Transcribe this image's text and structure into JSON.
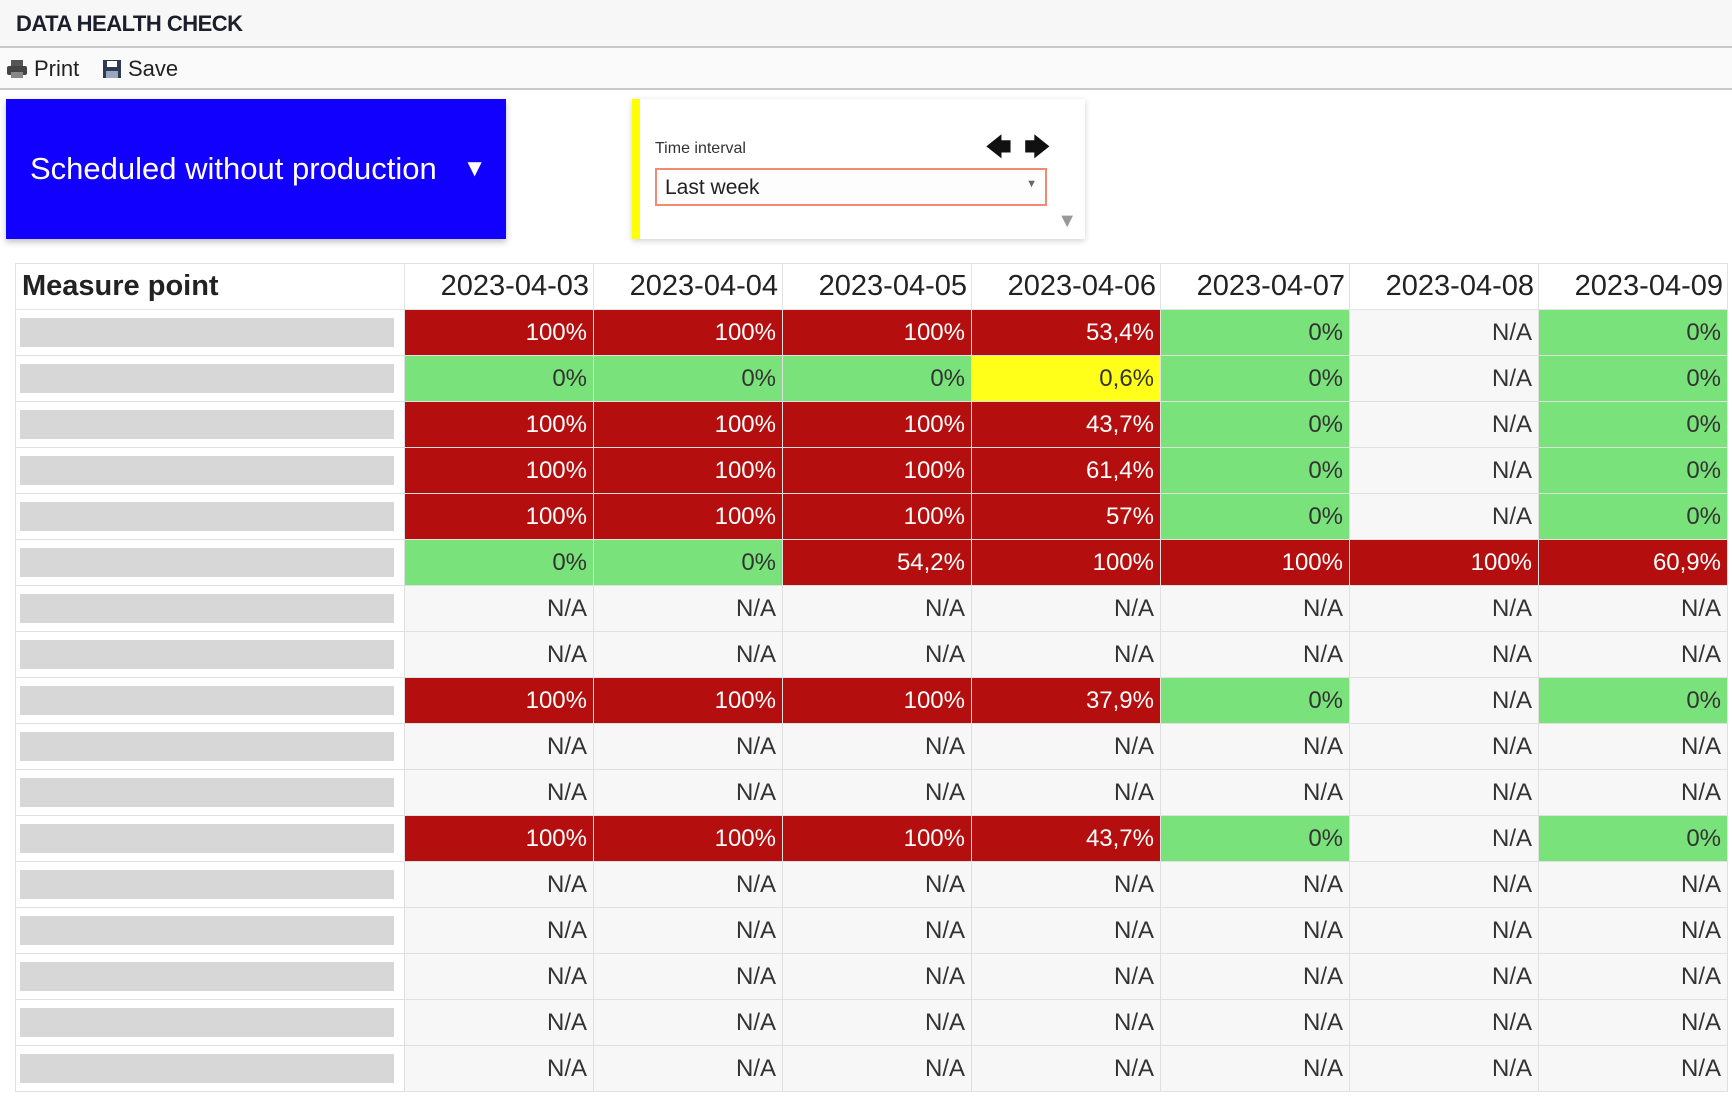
{
  "title": "DATA HEALTH CHECK",
  "toolbar": {
    "print_label": "Print",
    "save_label": "Save"
  },
  "category_selector": {
    "label": "Scheduled without production",
    "color": "#1200ff"
  },
  "time_interval": {
    "label": "Time interval",
    "value": "Last week"
  },
  "colors": {
    "red": "#b50e0e",
    "green": "#7ae27a",
    "yellow": "#ffff1a",
    "na": "#f7f7f7"
  },
  "table": {
    "header": "Measure point",
    "dates": [
      "2023-04-03",
      "2023-04-04",
      "2023-04-05",
      "2023-04-06",
      "2023-04-07",
      "2023-04-08",
      "2023-04-09"
    ],
    "rows": [
      [
        "100%",
        "100%",
        "100%",
        "53,4%",
        "0%",
        "N/A",
        "0%"
      ],
      [
        "0%",
        "0%",
        "0%",
        "0,6%",
        "0%",
        "N/A",
        "0%"
      ],
      [
        "100%",
        "100%",
        "100%",
        "43,7%",
        "0%",
        "N/A",
        "0%"
      ],
      [
        "100%",
        "100%",
        "100%",
        "61,4%",
        "0%",
        "N/A",
        "0%"
      ],
      [
        "100%",
        "100%",
        "100%",
        "57%",
        "0%",
        "N/A",
        "0%"
      ],
      [
        "0%",
        "0%",
        "54,2%",
        "100%",
        "100%",
        "100%",
        "60,9%"
      ],
      [
        "N/A",
        "N/A",
        "N/A",
        "N/A",
        "N/A",
        "N/A",
        "N/A"
      ],
      [
        "N/A",
        "N/A",
        "N/A",
        "N/A",
        "N/A",
        "N/A",
        "N/A"
      ],
      [
        "100%",
        "100%",
        "100%",
        "37,9%",
        "0%",
        "N/A",
        "0%"
      ],
      [
        "N/A",
        "N/A",
        "N/A",
        "N/A",
        "N/A",
        "N/A",
        "N/A"
      ],
      [
        "N/A",
        "N/A",
        "N/A",
        "N/A",
        "N/A",
        "N/A",
        "N/A"
      ],
      [
        "100%",
        "100%",
        "100%",
        "43,7%",
        "0%",
        "N/A",
        "0%"
      ],
      [
        "N/A",
        "N/A",
        "N/A",
        "N/A",
        "N/A",
        "N/A",
        "N/A"
      ],
      [
        "N/A",
        "N/A",
        "N/A",
        "N/A",
        "N/A",
        "N/A",
        "N/A"
      ],
      [
        "N/A",
        "N/A",
        "N/A",
        "N/A",
        "N/A",
        "N/A",
        "N/A"
      ],
      [
        "N/A",
        "N/A",
        "N/A",
        "N/A",
        "N/A",
        "N/A",
        "N/A"
      ],
      [
        "N/A",
        "N/A",
        "N/A",
        "N/A",
        "N/A",
        "N/A",
        "N/A"
      ]
    ],
    "status": [
      [
        "red",
        "red",
        "red",
        "red",
        "green",
        "na",
        "green"
      ],
      [
        "green",
        "green",
        "green",
        "yellow",
        "green",
        "na",
        "green"
      ],
      [
        "red",
        "red",
        "red",
        "red",
        "green",
        "na",
        "green"
      ],
      [
        "red",
        "red",
        "red",
        "red",
        "green",
        "na",
        "green"
      ],
      [
        "red",
        "red",
        "red",
        "red",
        "green",
        "na",
        "green"
      ],
      [
        "green",
        "green",
        "red",
        "red",
        "red",
        "red",
        "red"
      ],
      [
        "na",
        "na",
        "na",
        "na",
        "na",
        "na",
        "na"
      ],
      [
        "na",
        "na",
        "na",
        "na",
        "na",
        "na",
        "na"
      ],
      [
        "red",
        "red",
        "red",
        "red",
        "green",
        "na",
        "green"
      ],
      [
        "na",
        "na",
        "na",
        "na",
        "na",
        "na",
        "na"
      ],
      [
        "na",
        "na",
        "na",
        "na",
        "na",
        "na",
        "na"
      ],
      [
        "red",
        "red",
        "red",
        "red",
        "green",
        "na",
        "green"
      ],
      [
        "na",
        "na",
        "na",
        "na",
        "na",
        "na",
        "na"
      ],
      [
        "na",
        "na",
        "na",
        "na",
        "na",
        "na",
        "na"
      ],
      [
        "na",
        "na",
        "na",
        "na",
        "na",
        "na",
        "na"
      ],
      [
        "na",
        "na",
        "na",
        "na",
        "na",
        "na",
        "na"
      ],
      [
        "na",
        "na",
        "na",
        "na",
        "na",
        "na",
        "na"
      ]
    ]
  }
}
